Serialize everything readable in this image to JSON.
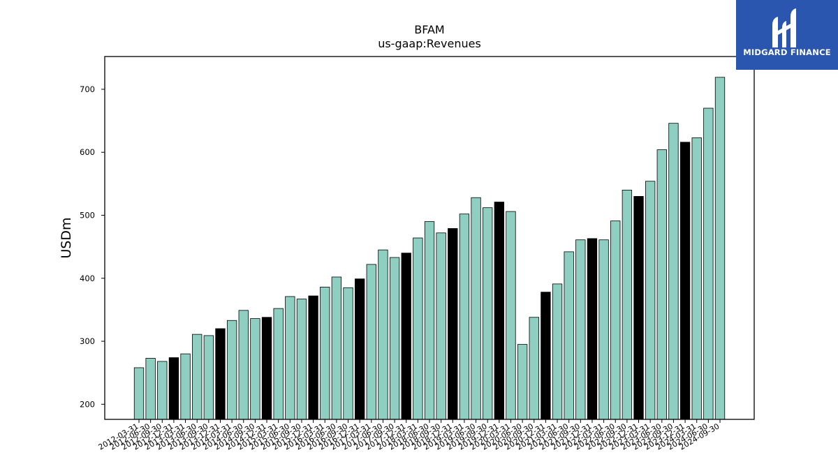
{
  "chart_data": {
    "type": "bar",
    "title": "BFAM",
    "subtitle": "us-gaap:Revenues",
    "xlabel": "",
    "ylabel": "USDm",
    "ylim": [
      176,
      752
    ],
    "yticks": [
      200,
      300,
      400,
      500,
      600,
      700
    ],
    "grid": false,
    "categories": [
      "2012-03-31",
      "2012-06-30",
      "2012-09-30",
      "2012-12-31",
      "2013-03-31",
      "2013-06-30",
      "2013-09-30",
      "2013-12-31",
      "2014-03-31",
      "2014-06-30",
      "2014-09-30",
      "2014-12-31",
      "2015-03-31",
      "2015-06-30",
      "2015-09-30",
      "2015-12-31",
      "2016-03-31",
      "2016-06-30",
      "2016-09-30",
      "2016-12-31",
      "2017-03-31",
      "2017-06-30",
      "2017-09-30",
      "2017-12-31",
      "2018-03-31",
      "2018-06-30",
      "2018-09-30",
      "2018-12-31",
      "2019-03-31",
      "2019-06-30",
      "2019-09-30",
      "2019-12-31",
      "2020-03-31",
      "2020-06-30",
      "2020-09-30",
      "2020-12-31",
      "2021-03-31",
      "2021-06-30",
      "2021-09-30",
      "2021-12-31",
      "2022-03-31",
      "2022-06-30",
      "2022-09-30",
      "2022-12-31",
      "2023-03-31",
      "2023-06-30",
      "2023-09-30",
      "2023-12-31",
      "2024-03-31",
      "2024-06-30",
      "2024-09-30"
    ],
    "values": [
      258,
      273,
      268,
      274,
      280,
      311,
      309,
      320,
      333,
      349,
      336,
      338,
      352,
      371,
      367,
      372,
      386,
      402,
      385,
      399,
      422,
      445,
      433,
      440,
      464,
      490,
      472,
      479,
      502,
      528,
      512,
      521,
      506,
      295,
      338,
      378,
      391,
      442,
      461,
      463,
      461,
      491,
      540,
      530,
      554,
      604,
      646,
      616,
      623,
      670,
      719
    ],
    "highlight_color": "#000000",
    "bar_color": "#8ecfc2",
    "edge_color": "#000000"
  },
  "logo": {
    "text": "MIDGARD FINANCE",
    "background": "#2a56b0"
  }
}
